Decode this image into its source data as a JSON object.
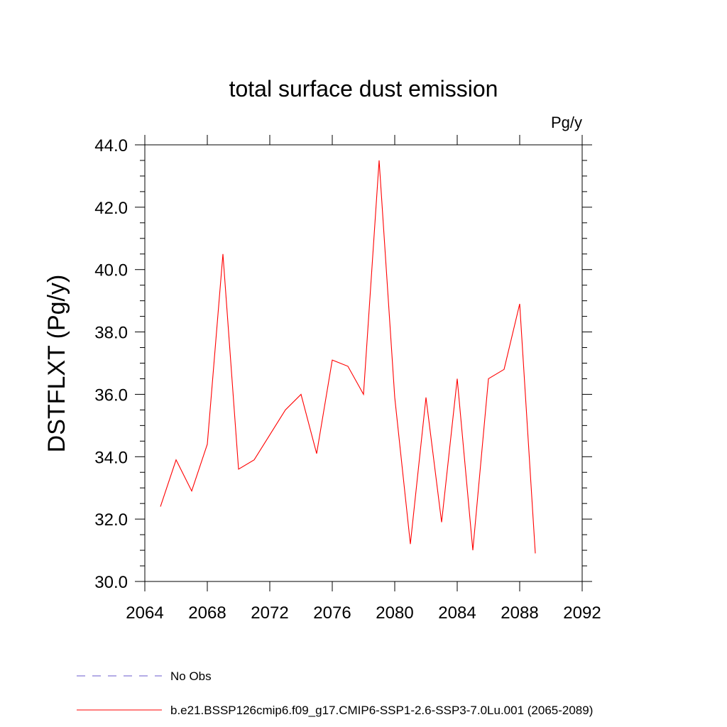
{
  "chart_data": {
    "type": "line",
    "title": "total surface dust emission",
    "units_label": "Pg/y",
    "ylabel": "DSTFLXT  (Pg/y)",
    "xlabel": "",
    "xlim": [
      2064,
      2092
    ],
    "ylim": [
      30.0,
      44.0
    ],
    "x_ticks": [
      2064,
      2068,
      2072,
      2076,
      2080,
      2084,
      2088,
      2092
    ],
    "x_tick_labels": [
      "2064",
      "2068",
      "2072",
      "2076",
      "2080",
      "2084",
      "2088",
      "2092"
    ],
    "y_ticks": [
      30,
      32,
      34,
      36,
      38,
      40,
      42,
      44
    ],
    "y_tick_labels": [
      "30.0",
      "32.0",
      "34.0",
      "36.0",
      "38.0",
      "40.0",
      "42.0",
      "44.0"
    ],
    "grid": false,
    "legend_position": "bottom",
    "series": [
      {
        "name": "b.e21.BSSP126cmip6.f09_g17.CMIP6-SSP1-2.6-SSP3-7.0Lu.001 (2065-2089)",
        "color": "#ff0000",
        "style": "solid",
        "x": [
          2065,
          2066,
          2067,
          2068,
          2069,
          2070,
          2071,
          2072,
          2073,
          2074,
          2075,
          2076,
          2077,
          2078,
          2079,
          2080,
          2081,
          2082,
          2083,
          2084,
          2085,
          2086,
          2087,
          2088,
          2089
        ],
        "y": [
          32.4,
          33.9,
          32.9,
          34.4,
          40.5,
          33.6,
          33.9,
          34.7,
          35.5,
          36.0,
          34.1,
          37.1,
          36.9,
          36.0,
          43.5,
          35.9,
          31.2,
          35.9,
          31.9,
          36.5,
          31.0,
          36.5,
          36.8,
          38.9,
          30.9
        ]
      }
    ],
    "legend": [
      {
        "label": "No Obs",
        "color": "#6a5acd",
        "style": "dashed"
      },
      {
        "label": "b.e21.BSSP126cmip6.f09_g17.CMIP6-SSP1-2.6-SSP3-7.0Lu.001 (2065-2089)",
        "color": "#ff0000",
        "style": "solid"
      }
    ]
  }
}
